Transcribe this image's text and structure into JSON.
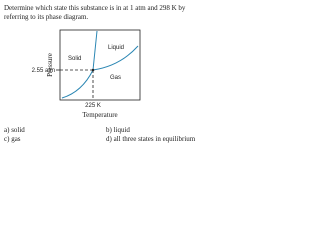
{
  "question": {
    "lines": [
      "Determine which state this substance is in at 1 atm and 298 K by",
      "referring to its phase diagram."
    ]
  },
  "diagram": {
    "y_axis_label": "Pressure",
    "x_axis_label": "Temperature",
    "pressure_label": "2.55 atm",
    "temperature_label": "225 K",
    "regions": [
      "Solid",
      "Liquid",
      "Gas"
    ]
  },
  "options": [
    "a)  solid",
    "b)  liquid",
    "c)  gas",
    "d)  all three states in equilibrium"
  ]
}
